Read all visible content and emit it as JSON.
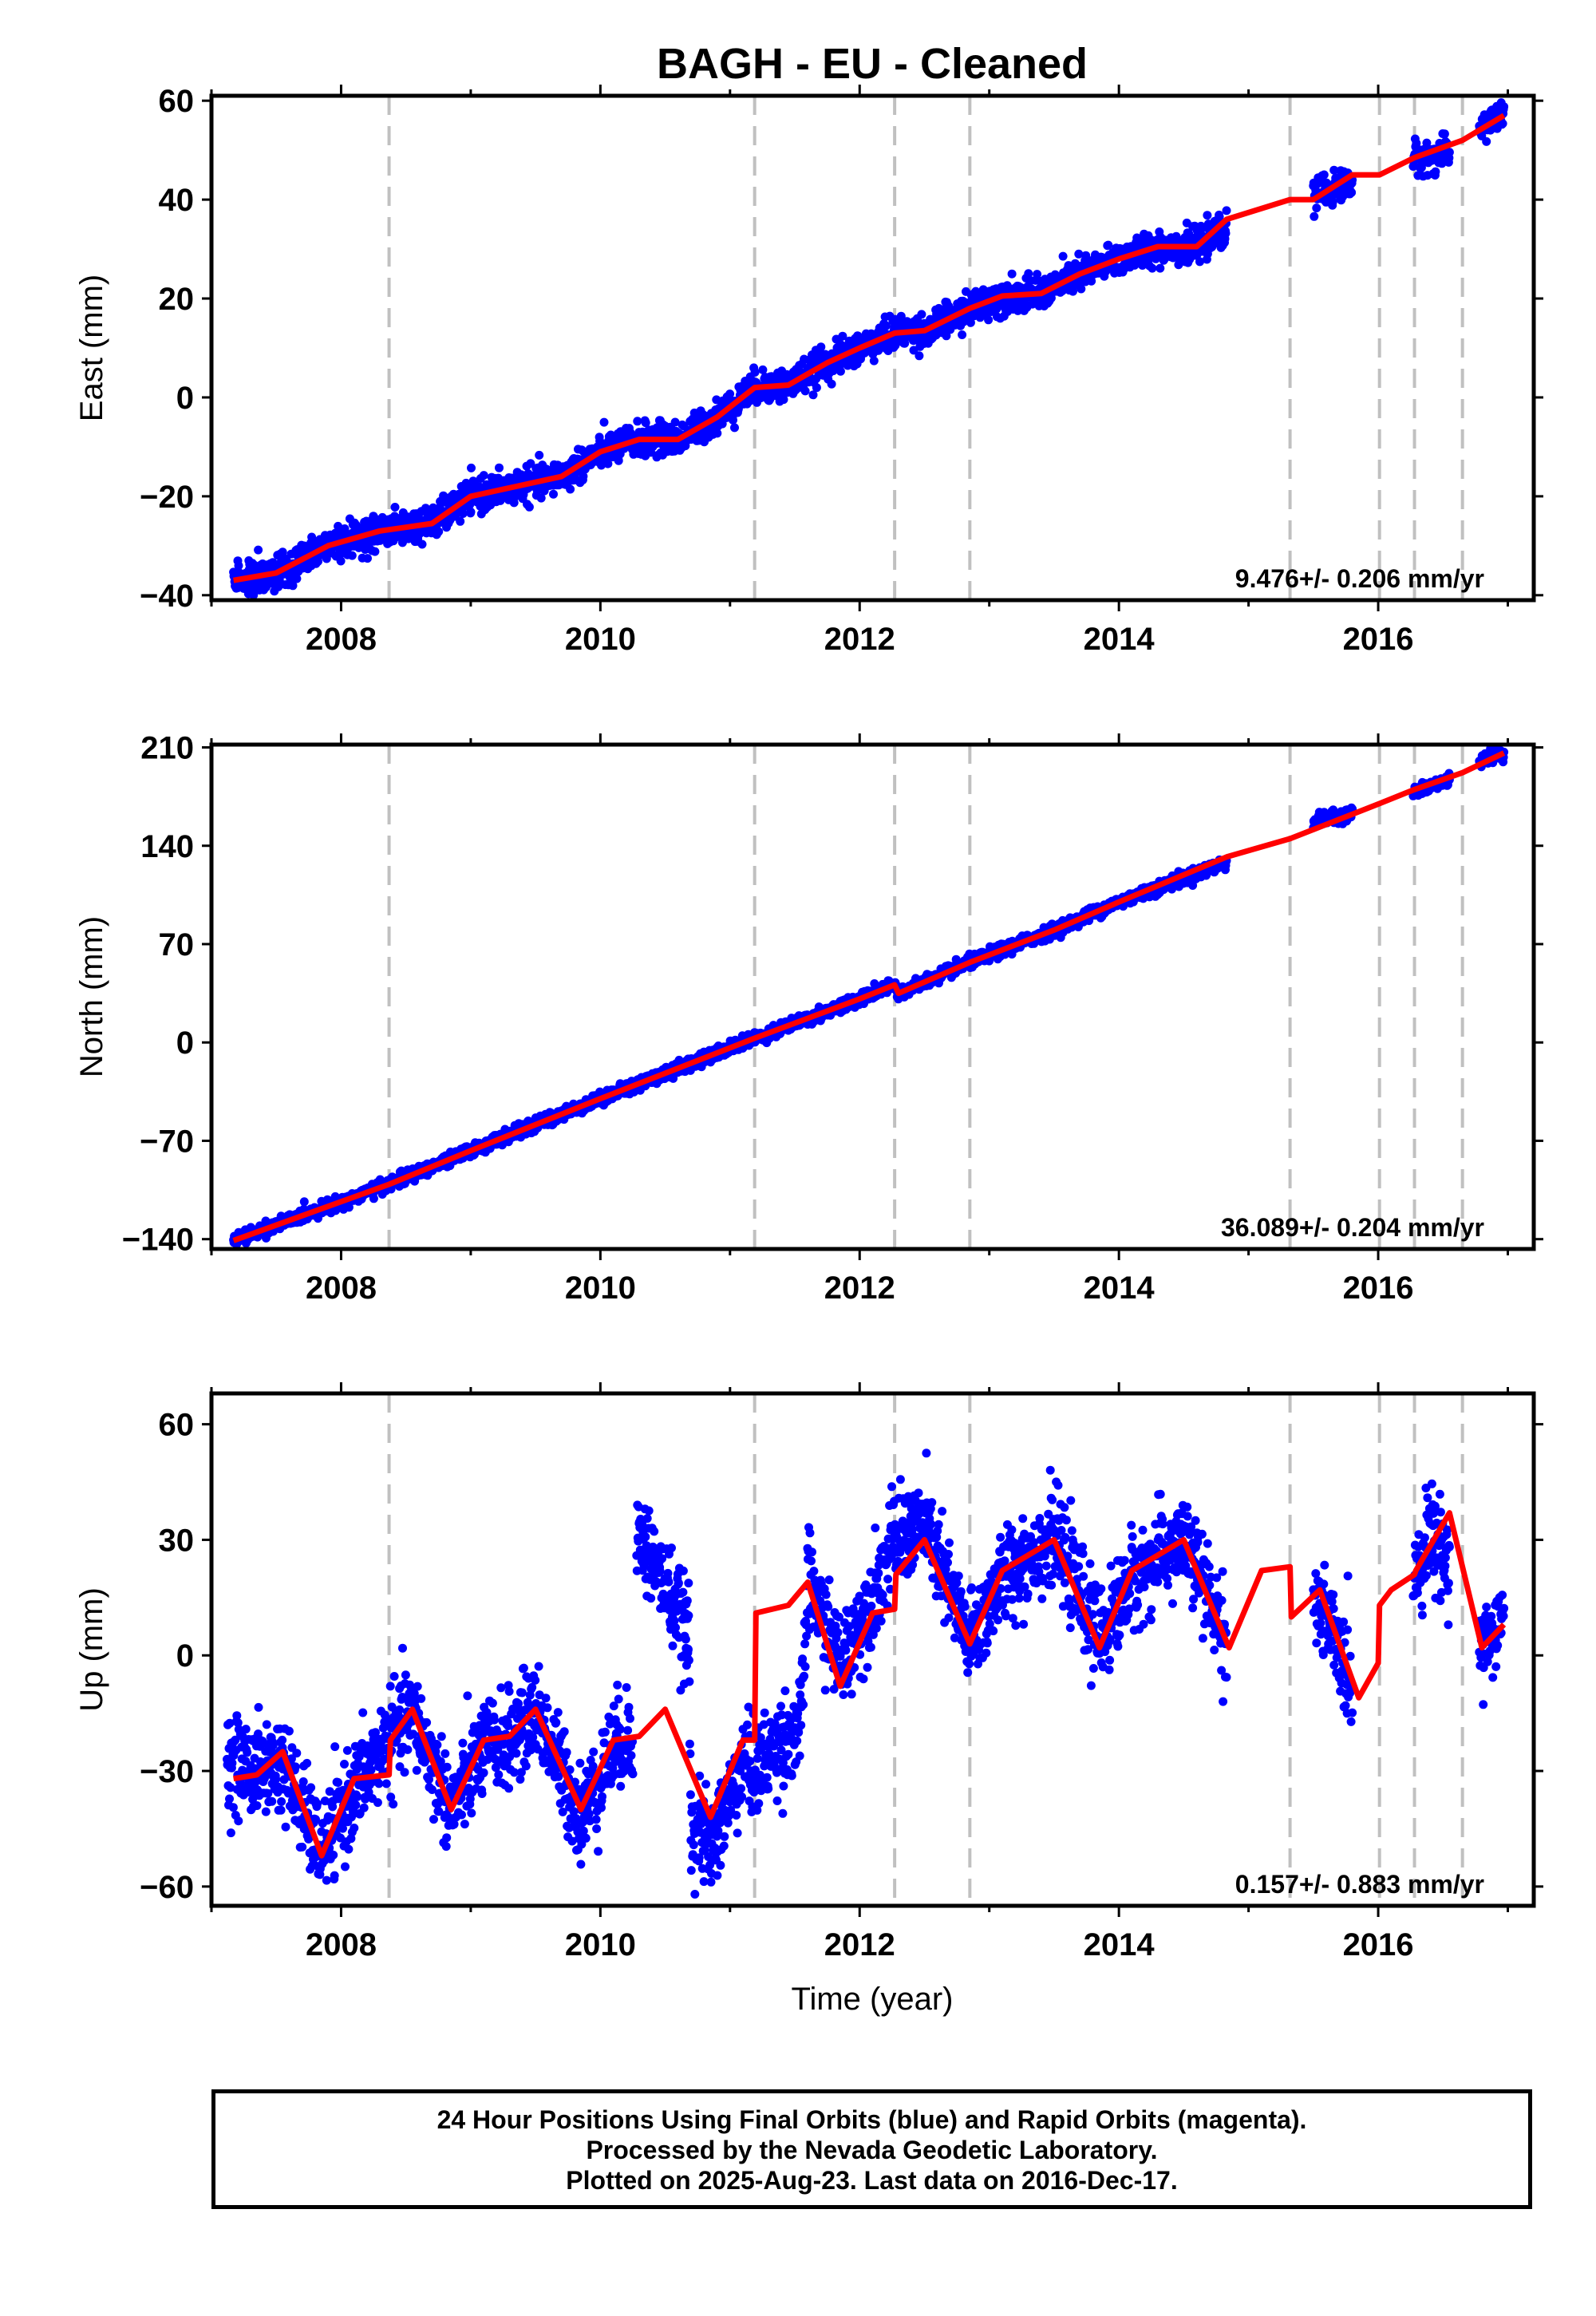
{
  "title": "BAGH  - EU - Cleaned",
  "xlabel": "Time (year)",
  "footer": {
    "line1": "24 Hour Positions Using Final Orbits (blue) and Rapid Orbits (magenta).",
    "line2": "Processed by the Nevada Geodetic Laboratory.",
    "line3": "Plotted on 2025-Aug-23. Last data on 2016-Dec-17."
  },
  "colors": {
    "data_points": "#0000ff",
    "model_line": "#ff0000",
    "break_lines": "#c0c0c0"
  },
  "chart_data": [
    {
      "type": "scatter",
      "panel": "east",
      "ylabel": "East (mm)",
      "xlim": [
        2007.0,
        2017.2
      ],
      "ylim": [
        -41,
        61
      ],
      "x_ticks": [
        2008,
        2010,
        2012,
        2014,
        2016
      ],
      "y_ticks": [
        -40,
        -20,
        0,
        20,
        40,
        60
      ],
      "y_tick_labels": [
        "−40",
        "−20",
        "0",
        "20",
        "40",
        "60"
      ],
      "rate_text": "9.476+/- 0.206 mm/yr",
      "break_lines": [
        2008.37,
        2011.19,
        2012.27,
        2012.85,
        2015.32,
        2016.01,
        2016.28,
        2016.65
      ],
      "data_segments": [
        [
          2007.17,
          2014.83
        ],
        [
          2015.5,
          2015.8
        ],
        [
          2016.27,
          2016.55
        ],
        [
          2016.78,
          2016.97
        ]
      ],
      "series": [
        {
          "name": "",
          "style": "line",
          "x": [
            2007.17,
            2007.5,
            2007.9,
            2008.3,
            2008.7,
            2009.0,
            2009.35,
            2009.7,
            2010.0,
            2010.3,
            2010.6,
            2010.9,
            2011.19,
            2011.45,
            2011.75,
            2012.0,
            2012.27,
            2012.5,
            2012.85,
            2013.1,
            2013.4,
            2013.7,
            2014.0,
            2014.3,
            2014.6,
            2014.83,
            2015.32,
            2015.5,
            2015.8,
            2016.01,
            2016.28,
            2016.65,
            2016.97
          ],
          "values": [
            -37,
            -35.5,
            -30,
            -27,
            -25.5,
            -20,
            -18,
            -16,
            -11,
            -8.5,
            -8.5,
            -4,
            2,
            2.5,
            7,
            10,
            13,
            13.5,
            18,
            20.5,
            21,
            25,
            28,
            30.5,
            30.5,
            36,
            40,
            40,
            45,
            45,
            48.5,
            52,
            57
          ]
        }
      ],
      "scatter_model_x": [
        2007.17,
        2007.5,
        2007.9,
        2008.3,
        2008.7,
        2009.0,
        2009.35,
        2009.7,
        2010.0,
        2010.3,
        2010.6,
        2010.9,
        2011.19,
        2011.45,
        2011.75,
        2012.0,
        2012.27,
        2012.5,
        2012.85,
        2013.1,
        2013.4,
        2013.7,
        2014.0,
        2014.3,
        2014.6,
        2014.83,
        2015.5,
        2015.8,
        2016.27,
        2016.55,
        2016.78,
        2016.97
      ],
      "scatter_model_y": [
        -37,
        -35.5,
        -30,
        -27,
        -25.5,
        -20,
        -18,
        -16,
        -11,
        -8.5,
        -8.5,
        -4,
        2,
        2.5,
        7,
        10,
        13,
        13.5,
        18,
        20.5,
        21,
        25,
        28,
        30.5,
        30.5,
        34,
        41,
        43.5,
        48.5,
        49,
        55,
        57
      ],
      "scatter_sigma": 1.6
    },
    {
      "type": "scatter",
      "panel": "north",
      "ylabel": "North (mm)",
      "xlim": [
        2007.0,
        2017.2
      ],
      "ylim": [
        -147,
        212
      ],
      "x_ticks": [
        2008,
        2010,
        2012,
        2014,
        2016
      ],
      "y_ticks": [
        -140,
        -70,
        0,
        70,
        140,
        210
      ],
      "y_tick_labels": [
        "−140",
        "−70",
        "0",
        "70",
        "140",
        "210"
      ],
      "rate_text": "36.089+/- 0.204 mm/yr",
      "break_lines": [
        2008.37,
        2011.19,
        2012.27,
        2012.85,
        2015.32,
        2016.01,
        2016.28,
        2016.65
      ],
      "data_segments": [
        [
          2007.17,
          2014.83
        ],
        [
          2015.5,
          2015.8
        ],
        [
          2016.27,
          2016.55
        ],
        [
          2016.78,
          2016.97
        ]
      ],
      "series": [
        {
          "name": "",
          "style": "line",
          "x": [
            2007.17,
            2008.37,
            2009.0,
            2010.0,
            2011.19,
            2012.0,
            2012.27,
            2012.3,
            2012.85,
            2013.5,
            2014.0,
            2014.83,
            2015.32,
            2016.01,
            2016.28,
            2016.65,
            2016.97
          ],
          "values": [
            -141,
            -101,
            -77,
            -40,
            3,
            31,
            41,
            35,
            57,
            80,
            100,
            132,
            145,
            170,
            180,
            192,
            206
          ]
        }
      ],
      "scatter_model_x": [
        2007.17,
        2008.37,
        2009.0,
        2010.0,
        2011.19,
        2012.0,
        2012.27,
        2012.3,
        2012.85,
        2013.5,
        2014.0,
        2014.83,
        2015.5,
        2015.8,
        2016.27,
        2016.55,
        2016.78,
        2016.97
      ],
      "scatter_model_y": [
        -141,
        -101,
        -77,
        -40,
        3,
        31,
        41,
        35,
        57,
        80,
        100,
        128,
        157,
        163,
        178,
        187,
        201,
        206
      ],
      "scatter_sigma": 2.2
    },
    {
      "type": "scatter",
      "panel": "up",
      "ylabel": "Up (mm)",
      "xlim": [
        2007.0,
        2017.2
      ],
      "ylim": [
        -65,
        68
      ],
      "x_ticks": [
        2008,
        2010,
        2012,
        2014,
        2016
      ],
      "y_ticks": [
        -60,
        -30,
        0,
        30,
        60
      ],
      "y_tick_labels": [
        "−60",
        "−30",
        "0",
        "30",
        "60"
      ],
      "rate_text": "0.157+/- 0.883 mm/yr",
      "break_lines": [
        2008.37,
        2011.19,
        2012.27,
        2012.85,
        2015.32,
        2016.01,
        2016.28,
        2016.65
      ],
      "data_segments": [
        [
          2007.12,
          2008.45
        ],
        [
          2008.45,
          2010.25
        ],
        [
          2010.28,
          2010.68
        ],
        [
          2010.65,
          2011.55
        ],
        [
          2011.55,
          2014.83
        ],
        [
          2015.5,
          2015.8
        ],
        [
          2016.27,
          2016.55
        ],
        [
          2016.78,
          2016.97
        ]
      ],
      "series": [
        {
          "name": "",
          "style": "line",
          "x": [
            2007.17,
            2007.35,
            2007.55,
            2007.85,
            2008.1,
            2008.37,
            2008.38,
            2008.55,
            2008.85,
            2009.1,
            2009.3,
            2009.5,
            2009.85,
            2010.1,
            2010.3,
            2010.5,
            2010.85,
            2011.1,
            2011.19,
            2011.2,
            2011.45,
            2011.6,
            2011.85,
            2012.1,
            2012.27,
            2012.28,
            2012.5,
            2012.85,
            2013.1,
            2013.5,
            2013.85,
            2014.1,
            2014.5,
            2014.85,
            2015.1,
            2015.32,
            2015.33,
            2015.55,
            2015.85,
            2016.0,
            2016.01,
            2016.1,
            2016.28,
            2016.29,
            2016.55,
            2016.8,
            2016.97
          ],
          "values": [
            -32,
            -31,
            -25,
            -52,
            -32,
            -31,
            -22,
            -14,
            -40,
            -22,
            -21,
            -14,
            -40,
            -22,
            -21,
            -14,
            -42,
            -22,
            -22,
            11,
            13,
            19,
            -8,
            11,
            12,
            21,
            30,
            3,
            22,
            30,
            2,
            22,
            30,
            2,
            22,
            23,
            10,
            17,
            -11,
            -2,
            13,
            17,
            21,
            22,
            37,
            2,
            8
          ]
        }
      ],
      "scatter_model_x": [
        2007.17,
        2007.35,
        2007.55,
        2007.85,
        2008.1,
        2008.37,
        2008.55,
        2008.85,
        2009.1,
        2009.3,
        2009.5,
        2009.85,
        2010.1,
        2010.25,
        2010.28,
        2010.4,
        2010.55,
        2010.68,
        2010.7,
        2010.85,
        2011.1,
        2011.2,
        2011.35,
        2011.55,
        2011.6,
        2011.85,
        2012.1,
        2012.27,
        2012.5,
        2012.85,
        2013.1,
        2013.5,
        2013.85,
        2014.1,
        2014.5,
        2014.83,
        2015.5,
        2015.65,
        2015.8,
        2016.27,
        2016.4,
        2016.55,
        2016.78,
        2016.97
      ],
      "scatter_model_y": [
        -28,
        -30,
        -28,
        -52,
        -35,
        -22,
        -15,
        -40,
        -24,
        -22,
        -14,
        -42,
        -24,
        -20,
        32,
        25,
        15,
        4,
        -43,
        -50,
        -28,
        -30,
        -24,
        -18,
        20,
        -2,
        15,
        30,
        34,
        3,
        20,
        31,
        4,
        20,
        30,
        4,
        15,
        5,
        -8,
        20,
        32,
        24,
        3,
        8
      ],
      "scatter_sigma": 6
    }
  ]
}
